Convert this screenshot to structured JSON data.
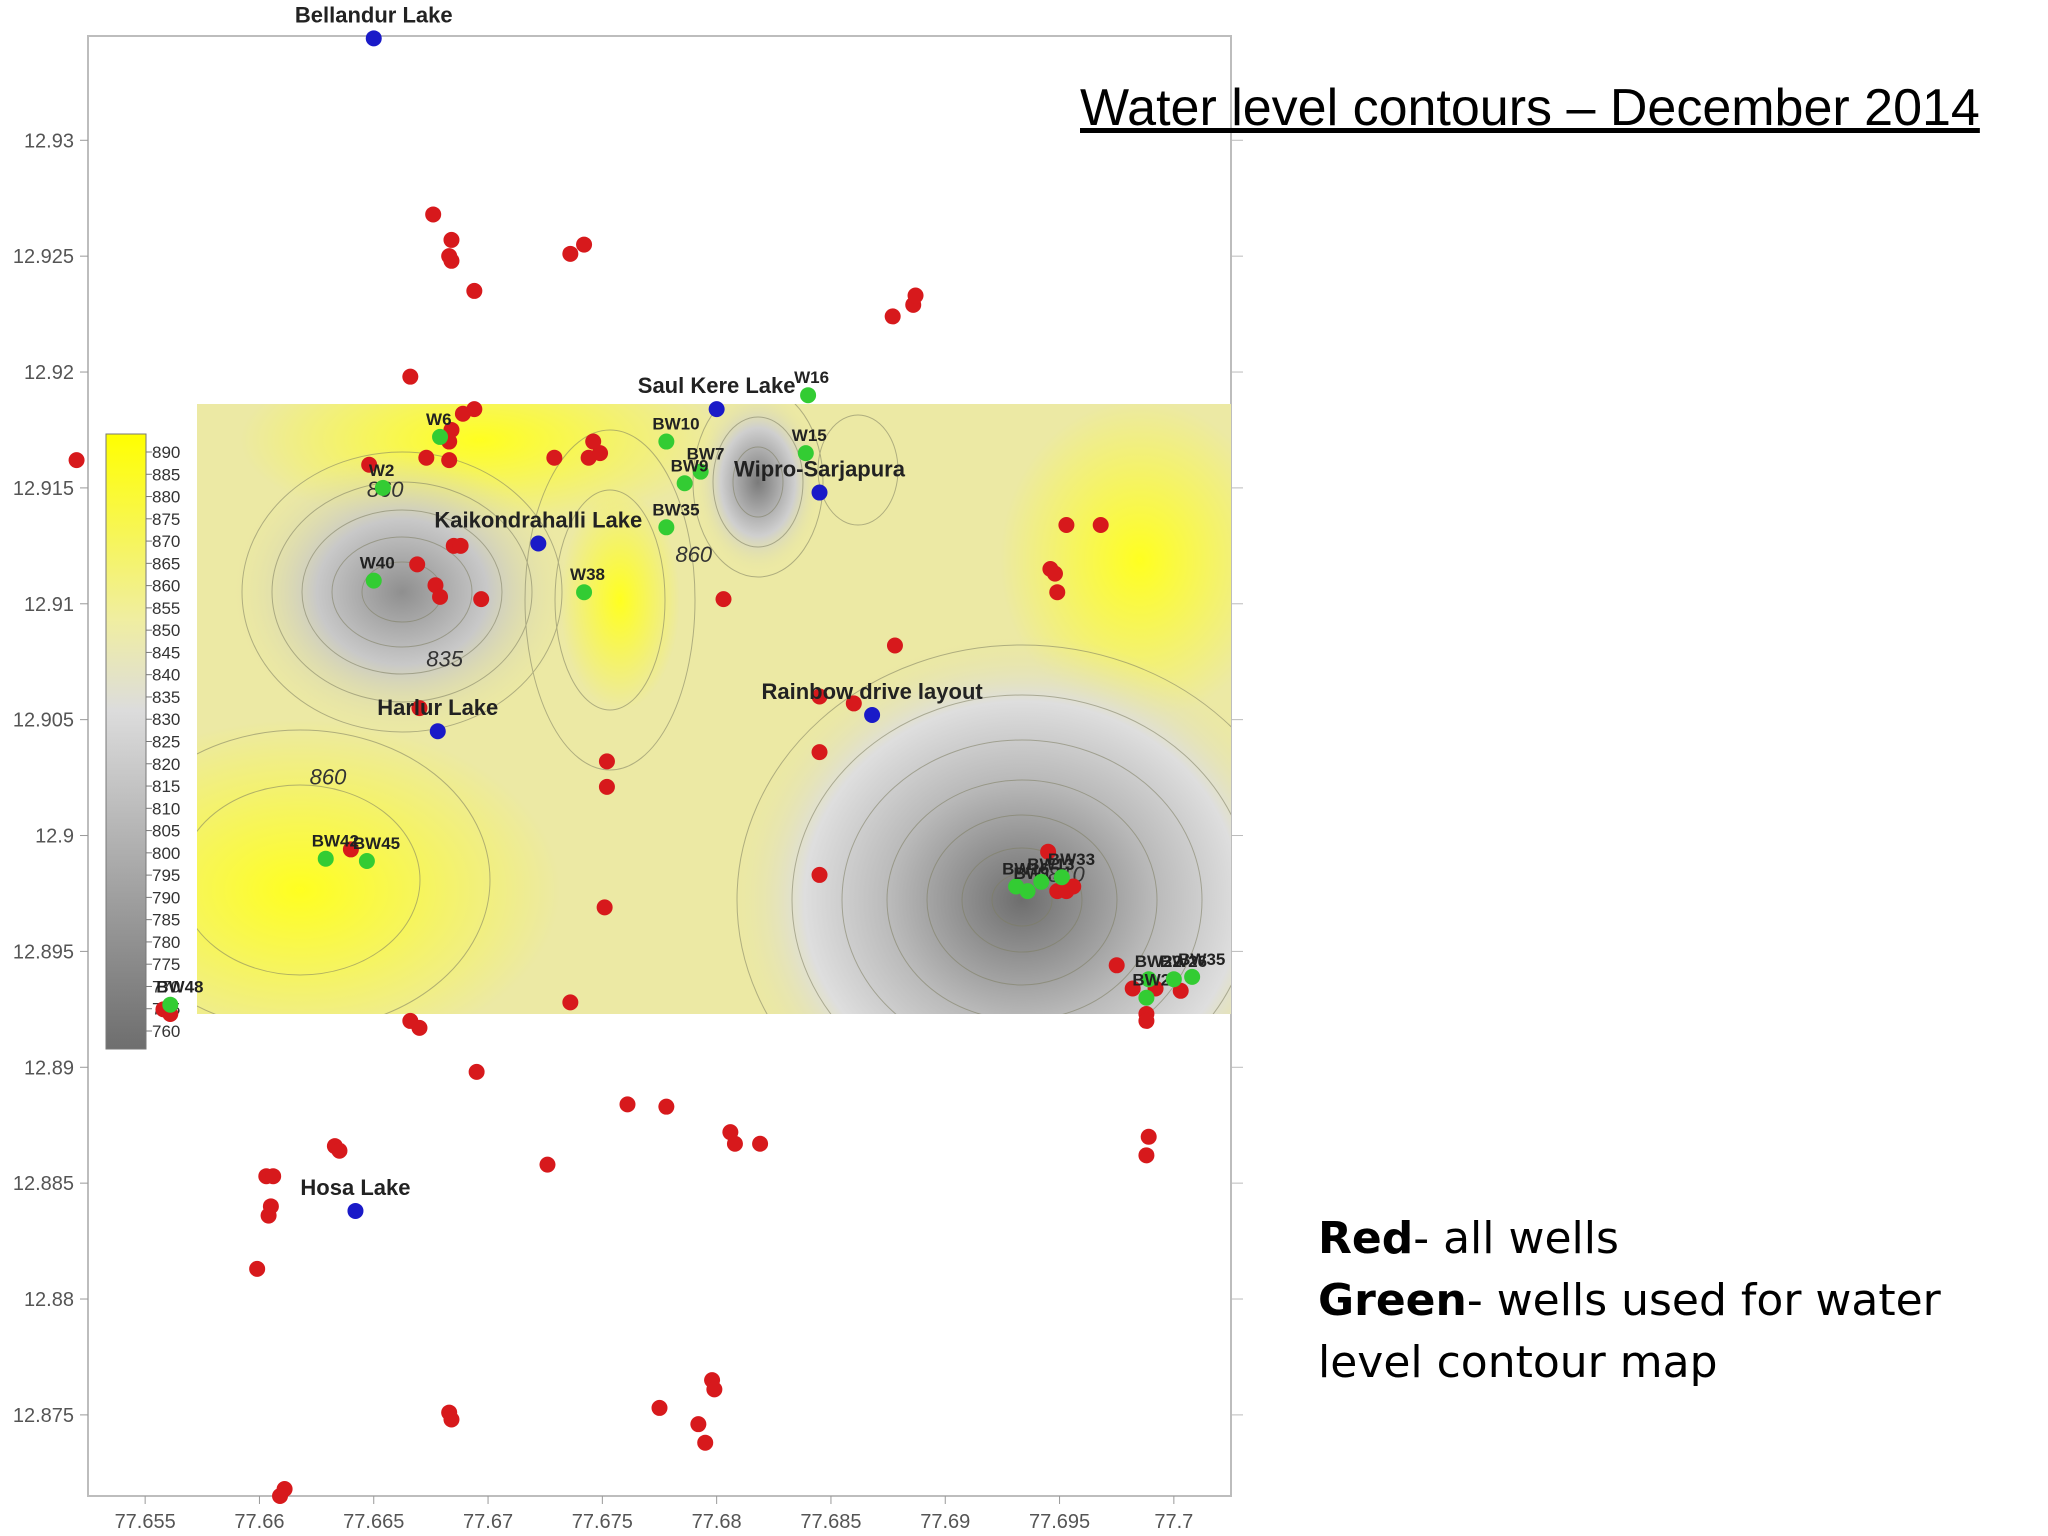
{
  "title": "Water level contours – December  2014",
  "legend": {
    "red_key": "Red",
    "red_text": "- all wells",
    "green_key": "Green",
    "green_text": "- wells used for water level contour map"
  },
  "colors": {
    "all_wells": "#d7191c",
    "contour_wells": "#33cc33",
    "lakes": "#1a1ac8",
    "high": "#ffff00",
    "low": "#6e6e6e"
  },
  "axes": {
    "x_ticks": [
      "77.655",
      "77.66",
      "77.665",
      "77.67",
      "77.675",
      "77.68",
      "77.685",
      "77.69",
      "77.695",
      "77.7"
    ],
    "y_ticks": [
      "12.93",
      "12.925",
      "12.92",
      "12.915",
      "12.91",
      "12.905",
      "12.9",
      "12.895",
      "12.89",
      "12.885",
      "12.88",
      "12.875"
    ],
    "x_range": [
      77.6525,
      77.7025
    ],
    "y_range": [
      12.8715,
      12.9345
    ]
  },
  "colorbar": {
    "labels": [
      "890",
      "885",
      "880",
      "875",
      "870",
      "865",
      "860",
      "855",
      "850",
      "845",
      "840",
      "835",
      "830",
      "825",
      "820",
      "815",
      "810",
      "805",
      "800",
      "795",
      "790",
      "785",
      "780",
      "775",
      "770",
      "765",
      "760"
    ]
  },
  "contour_labels": [
    {
      "text": "860",
      "lon": 77.6655,
      "lat": 12.9146
    },
    {
      "text": "835",
      "lon": 77.6681,
      "lat": 12.9073
    },
    {
      "text": "860",
      "lon": 77.663,
      "lat": 12.9022
    },
    {
      "text": "860",
      "lon": 77.679,
      "lat": 12.9118
    },
    {
      "text": "810",
      "lon": 77.6953,
      "lat": 12.898
    }
  ],
  "lakes": [
    {
      "name": "Bellandur Lake",
      "lon": 77.665,
      "lat": 12.9344
    },
    {
      "name": "Saul Kere Lake",
      "lon": 77.68,
      "lat": 12.9184
    },
    {
      "name": "Wipro-Sarjapura",
      "lon": 77.6845,
      "lat": 12.9148
    },
    {
      "name": "Kaikondrahalli Lake",
      "lon": 77.6722,
      "lat": 12.9126
    },
    {
      "name": "Harlur Lake",
      "lon": 77.6678,
      "lat": 12.9045
    },
    {
      "name": "Rainbow drive layout",
      "lon": 77.6868,
      "lat": 12.9052
    },
    {
      "name": "Hosa Lake",
      "lon": 77.6642,
      "lat": 12.8838
    }
  ],
  "green_wells": [
    {
      "name": "W16",
      "lon": 77.684,
      "lat": 12.919
    },
    {
      "name": "W15",
      "lon": 77.6839,
      "lat": 12.9165
    },
    {
      "name": "BW10",
      "lon": 77.6778,
      "lat": 12.917
    },
    {
      "name": "BW7",
      "lon": 77.6793,
      "lat": 12.9157
    },
    {
      "name": "BW9",
      "lon": 77.6786,
      "lat": 12.9152
    },
    {
      "name": "BW35",
      "lon": 77.6778,
      "lat": 12.9133
    },
    {
      "name": "W6",
      "lon": 77.6679,
      "lat": 12.9172
    },
    {
      "name": "W2",
      "lon": 77.6654,
      "lat": 12.915
    },
    {
      "name": "W40",
      "lon": 77.665,
      "lat": 12.911
    },
    {
      "name": "W38",
      "lon": 77.6742,
      "lat": 12.9105
    },
    {
      "name": "BW42",
      "lon": 77.6629,
      "lat": 12.899
    },
    {
      "name": "BW45",
      "lon": 77.6647,
      "lat": 12.8989
    },
    {
      "name": "BW48",
      "lon": 77.6561,
      "lat": 12.8927
    },
    {
      "name": "BW16",
      "lon": 77.6931,
      "lat": 12.8978
    },
    {
      "name": "BW17",
      "lon": 77.6936,
      "lat": 12.8976
    },
    {
      "name": "BW13",
      "lon": 77.6942,
      "lat": 12.898
    },
    {
      "name": "BW33",
      "lon": 77.6951,
      "lat": 12.8982
    },
    {
      "name": "BW22",
      "lon": 77.6989,
      "lat": 12.8938
    },
    {
      "name": "BW24",
      "lon": 77.6988,
      "lat": 12.893
    },
    {
      "name": "BW26",
      "lon": 77.7,
      "lat": 12.8938
    },
    {
      "name": "BW35",
      "lon": 77.7008,
      "lat": 12.8939
    }
  ],
  "red_wells": [
    [
      77.652,
      12.9162
    ],
    [
      77.6676,
      12.9268
    ],
    [
      77.6684,
      12.9257
    ],
    [
      77.6683,
      12.925
    ],
    [
      77.6684,
      12.9248
    ],
    [
      77.6694,
      12.9235
    ],
    [
      77.6736,
      12.9251
    ],
    [
      77.6742,
      12.9255
    ],
    [
      77.6877,
      12.9224
    ],
    [
      77.6886,
      12.9229
    ],
    [
      77.6887,
      12.9233
    ],
    [
      77.6666,
      12.9198
    ],
    [
      77.6689,
      12.9182
    ],
    [
      77.6694,
      12.9184
    ],
    [
      77.6684,
      12.9175
    ],
    [
      77.6683,
      12.917
    ],
    [
      77.6673,
      12.9163
    ],
    [
      77.6683,
      12.9162
    ],
    [
      77.6648,
      12.916
    ],
    [
      77.6729,
      12.9163
    ],
    [
      77.6744,
      12.9163
    ],
    [
      77.6749,
      12.9165
    ],
    [
      77.6746,
      12.917
    ],
    [
      77.6685,
      12.9125
    ],
    [
      77.6688,
      12.9125
    ],
    [
      77.6669,
      12.9117
    ],
    [
      77.6677,
      12.9108
    ],
    [
      77.6679,
      12.9103
    ],
    [
      77.6697,
      12.9102
    ],
    [
      77.6803,
      12.9102
    ],
    [
      77.6953,
      12.9134
    ],
    [
      77.6968,
      12.9134
    ],
    [
      77.6946,
      12.9115
    ],
    [
      77.6948,
      12.9113
    ],
    [
      77.6949,
      12.9105
    ],
    [
      77.6878,
      12.9082
    ],
    [
      77.6845,
      12.906
    ],
    [
      77.686,
      12.9057
    ],
    [
      77.667,
      12.9055
    ],
    [
      77.6752,
      12.9032
    ],
    [
      77.6752,
      12.9021
    ],
    [
      77.6845,
      12.9036
    ],
    [
      77.664,
      12.8994
    ],
    [
      77.6945,
      12.8993
    ],
    [
      77.6845,
      12.8983
    ],
    [
      77.6751,
      12.8969
    ],
    [
      77.6949,
      12.8976
    ],
    [
      77.6953,
      12.8976
    ],
    [
      77.6956,
      12.8978
    ],
    [
      77.6561,
      12.8923
    ],
    [
      77.6558,
      12.8925
    ],
    [
      77.6975,
      12.8944
    ],
    [
      77.6982,
      12.8934
    ],
    [
      77.6992,
      12.8934
    ],
    [
      77.7003,
      12.8933
    ],
    [
      77.6988,
      12.8923
    ],
    [
      77.6988,
      12.892
    ],
    [
      77.6666,
      12.892
    ],
    [
      77.667,
      12.8917
    ],
    [
      77.6736,
      12.8928
    ],
    [
      77.6695,
      12.8898
    ],
    [
      77.6761,
      12.8884
    ],
    [
      77.6778,
      12.8883
    ],
    [
      77.6806,
      12.8872
    ],
    [
      77.6808,
      12.8867
    ],
    [
      77.6819,
      12.8867
    ],
    [
      77.6633,
      12.8866
    ],
    [
      77.6635,
      12.8864
    ],
    [
      77.6726,
      12.8858
    ],
    [
      77.6603,
      12.8853
    ],
    [
      77.6606,
      12.8853
    ],
    [
      77.6605,
      12.884
    ],
    [
      77.6604,
      12.8836
    ],
    [
      77.6989,
      12.887
    ],
    [
      77.6988,
      12.8862
    ],
    [
      77.6599,
      12.8813
    ],
    [
      77.6798,
      12.8765
    ],
    [
      77.6799,
      12.8761
    ],
    [
      77.6683,
      12.8751
    ],
    [
      77.6684,
      12.8748
    ],
    [
      77.6775,
      12.8753
    ],
    [
      77.6792,
      12.8746
    ],
    [
      77.6795,
      12.8738
    ],
    [
      77.6611,
      12.8718
    ],
    [
      77.6609,
      12.8715
    ]
  ]
}
